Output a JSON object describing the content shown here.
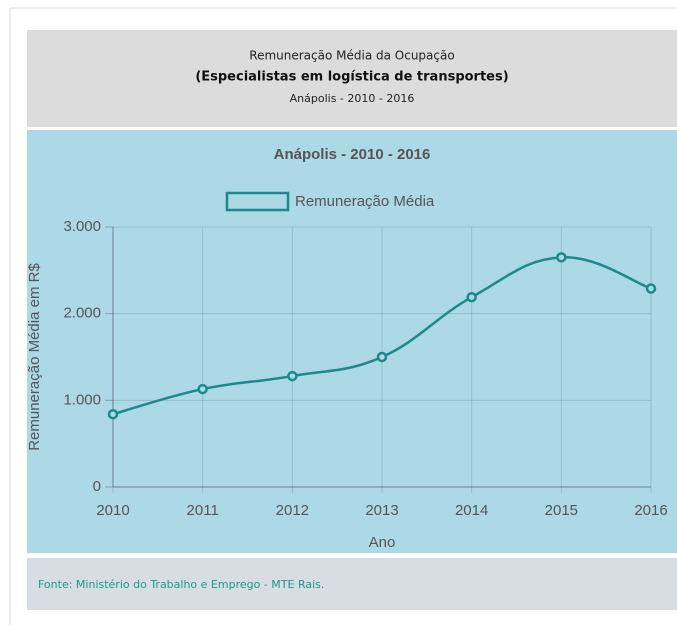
{
  "header": {
    "line1": "Remuneração Média da Ocupação",
    "line2": "(Especialistas em logística de transportes)",
    "line3": "Anápolis - 2010 - 2016"
  },
  "chart_data": {
    "type": "line",
    "title": "Anápolis -  2010 - 2016",
    "x_label": "Ano",
    "y_label": "Remuneração Média em R$",
    "categories": [
      "2010",
      "2011",
      "2012",
      "2013",
      "2014",
      "2015",
      "2016"
    ],
    "series": [
      {
        "name": "Remuneração Média",
        "color": "#1a8a8a",
        "values": [
          840,
          1130,
          1280,
          1500,
          2190,
          2650,
          2290
        ]
      }
    ],
    "ylim": [
      0,
      3000
    ],
    "yticks": [
      0,
      {
        "value": 1000,
        "label": "1.000"
      },
      {
        "value": 2000,
        "label": "2.000"
      },
      {
        "value": 3000,
        "label": "3.000"
      }
    ],
    "grid": true,
    "legend": "top"
  },
  "footer": {
    "source": "Fonte: Ministério do Trabalho e Emprego - MTE Rais."
  }
}
